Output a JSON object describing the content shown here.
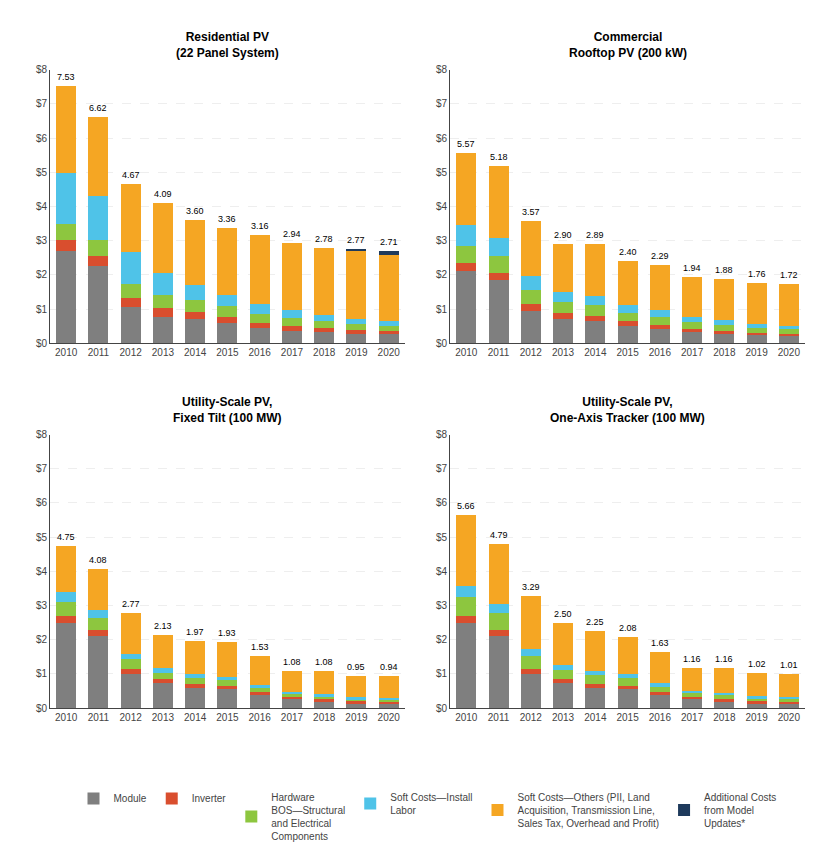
{
  "chart_data": [
    {
      "type": "bar",
      "stacked": true,
      "grid": true,
      "title": "Residential PV\n(22 Panel System)",
      "categories": [
        "2010",
        "2011",
        "2012",
        "2013",
        "2014",
        "2015",
        "2016",
        "2017",
        "2018",
        "2019",
        "2020"
      ],
      "series": [
        {
          "name": "Module",
          "color": "#7F7F7F",
          "values": [
            2.7,
            2.26,
            1.05,
            0.78,
            0.72,
            0.6,
            0.44,
            0.37,
            0.32,
            0.28,
            0.26
          ]
        },
        {
          "name": "Inverter",
          "color": "#D94E2E",
          "values": [
            0.32,
            0.3,
            0.27,
            0.24,
            0.2,
            0.18,
            0.16,
            0.14,
            0.12,
            0.11,
            0.1
          ]
        },
        {
          "name": "Hardware\nBOS—Structural\nand Electrical\nComponents",
          "color": "#8DC63F",
          "values": [
            0.48,
            0.46,
            0.42,
            0.38,
            0.35,
            0.3,
            0.26,
            0.23,
            0.2,
            0.17,
            0.16
          ]
        },
        {
          "name": "Soft Costs—Install\nLabor",
          "color": "#4FC3E8",
          "values": [
            1.48,
            1.3,
            0.93,
            0.67,
            0.43,
            0.33,
            0.28,
            0.22,
            0.18,
            0.15,
            0.13
          ]
        },
        {
          "name": "Soft Costs—Others (PII, Land\nAcquisition, Transmission Line,\nSales Tax, Overhead and Profit)",
          "color": "#F5A623",
          "values": [
            2.55,
            2.3,
            2.0,
            2.02,
            1.9,
            1.95,
            2.02,
            1.98,
            1.96,
            1.99,
            1.93
          ]
        },
        {
          "name": "Additional Costs\nfrom Model\nUpdates*",
          "color": "#1E3A5C",
          "values": [
            0.0,
            0.0,
            0.0,
            0.0,
            0.0,
            0.0,
            0.0,
            0.0,
            0.0,
            0.07,
            0.13
          ]
        }
      ],
      "totals": [
        7.53,
        6.62,
        4.67,
        4.09,
        3.6,
        3.36,
        3.16,
        2.94,
        2.78,
        2.77,
        2.71
      ],
      "total_labels": [
        "7.53",
        "6.62",
        "4.67",
        "4.09",
        "3.60",
        "3.36",
        "3.16",
        "2.94",
        "2.78",
        "2.77",
        "2.71"
      ],
      "ylim": [
        0,
        8
      ],
      "yticks": [
        {
          "value": 0,
          "label": "$0"
        },
        {
          "value": 1,
          "label": "$1"
        },
        {
          "value": 2,
          "label": "$2"
        },
        {
          "value": 3,
          "label": "$3"
        },
        {
          "value": 4,
          "label": "$4"
        },
        {
          "value": 5,
          "label": "$5"
        },
        {
          "value": 6,
          "label": "$6"
        },
        {
          "value": 7,
          "label": "$7"
        },
        {
          "value": 8,
          "label": "$8"
        }
      ]
    },
    {
      "type": "bar",
      "stacked": true,
      "grid": true,
      "title": "Commercial\nRooftop PV (200 kW)",
      "categories": [
        "2010",
        "2011",
        "2012",
        "2013",
        "2014",
        "2015",
        "2016",
        "2017",
        "2018",
        "2019",
        "2020"
      ],
      "series": [
        {
          "name": "Module",
          "color": "#7F7F7F",
          "values": [
            2.1,
            1.85,
            0.95,
            0.72,
            0.65,
            0.52,
            0.42,
            0.33,
            0.28,
            0.23,
            0.21
          ]
        },
        {
          "name": "Inverter",
          "color": "#D94E2E",
          "values": [
            0.25,
            0.22,
            0.2,
            0.16,
            0.16,
            0.13,
            0.12,
            0.1,
            0.09,
            0.08,
            0.07
          ]
        },
        {
          "name": "Hardware\nBOS—Structural\nand Electrical\nComponents",
          "color": "#8DC63F",
          "values": [
            0.5,
            0.47,
            0.4,
            0.32,
            0.3,
            0.25,
            0.22,
            0.18,
            0.16,
            0.14,
            0.13
          ]
        },
        {
          "name": "Soft Costs—Install\nLabor",
          "color": "#4FC3E8",
          "values": [
            0.62,
            0.54,
            0.42,
            0.3,
            0.28,
            0.22,
            0.2,
            0.16,
            0.14,
            0.12,
            0.11
          ]
        },
        {
          "name": "Soft Costs—Others (PII, Land\nAcquisition, Transmission Line,\nSales Tax, Overhead and Profit)",
          "color": "#F5A623",
          "values": [
            2.1,
            2.1,
            1.6,
            1.4,
            1.5,
            1.28,
            1.33,
            1.17,
            1.21,
            1.19,
            1.2
          ]
        },
        {
          "name": "Additional Costs\nfrom Model\nUpdates*",
          "color": "#1E3A5C",
          "values": [
            0.0,
            0.0,
            0.0,
            0.0,
            0.0,
            0.0,
            0.0,
            0.0,
            0.0,
            0.0,
            0.0
          ]
        }
      ],
      "totals": [
        5.57,
        5.18,
        3.57,
        2.9,
        2.89,
        2.4,
        2.29,
        1.94,
        1.88,
        1.76,
        1.72
      ],
      "total_labels": [
        "5.57",
        "5.18",
        "3.57",
        "2.90",
        "2.89",
        "2.40",
        "2.29",
        "1.94",
        "1.88",
        "1.76",
        "1.72"
      ],
      "ylim": [
        0,
        8
      ],
      "yticks": [
        {
          "value": 0,
          "label": "$0"
        },
        {
          "value": 1,
          "label": "$1"
        },
        {
          "value": 2,
          "label": "$2"
        },
        {
          "value": 3,
          "label": "$3"
        },
        {
          "value": 4,
          "label": "$4"
        },
        {
          "value": 5,
          "label": "$5"
        },
        {
          "value": 6,
          "label": "$6"
        },
        {
          "value": 7,
          "label": "$7"
        },
        {
          "value": 8,
          "label": "$8"
        }
      ]
    },
    {
      "type": "bar",
      "stacked": true,
      "grid": true,
      "title": "Utility-Scale PV,\nFixed Tilt (100 MW)",
      "categories": [
        "2010",
        "2011",
        "2012",
        "2013",
        "2014",
        "2015",
        "2016",
        "2017",
        "2018",
        "2019",
        "2020"
      ],
      "series": [
        {
          "name": "Module",
          "color": "#7F7F7F",
          "values": [
            2.5,
            2.1,
            1.0,
            0.72,
            0.6,
            0.55,
            0.38,
            0.26,
            0.22,
            0.16,
            0.15
          ]
        },
        {
          "name": "Inverter",
          "color": "#D94E2E",
          "values": [
            0.2,
            0.18,
            0.15,
            0.12,
            0.11,
            0.1,
            0.08,
            0.06,
            0.05,
            0.04,
            0.04
          ]
        },
        {
          "name": "Hardware\nBOS—Structural\nand Electrical\nComponents",
          "color": "#8DC63F",
          "values": [
            0.4,
            0.36,
            0.28,
            0.2,
            0.18,
            0.17,
            0.13,
            0.09,
            0.08,
            0.07,
            0.07
          ]
        },
        {
          "name": "Soft Costs—Install\nLabor",
          "color": "#4FC3E8",
          "values": [
            0.28,
            0.22,
            0.16,
            0.12,
            0.1,
            0.1,
            0.08,
            0.06,
            0.05,
            0.05,
            0.04
          ]
        },
        {
          "name": "Soft Costs—Others (PII, Land\nAcquisition, Transmission Line,\nSales Tax, Overhead and Profit)",
          "color": "#F5A623",
          "values": [
            1.37,
            1.22,
            1.18,
            0.97,
            0.98,
            1.01,
            0.86,
            0.61,
            0.68,
            0.63,
            0.64
          ]
        },
        {
          "name": "Additional Costs\nfrom Model\nUpdates*",
          "color": "#1E3A5C",
          "values": [
            0.0,
            0.0,
            0.0,
            0.0,
            0.0,
            0.0,
            0.0,
            0.0,
            0.0,
            0.0,
            0.0
          ]
        }
      ],
      "totals": [
        4.75,
        4.08,
        2.77,
        2.13,
        1.97,
        1.93,
        1.53,
        1.08,
        1.08,
        0.95,
        0.94
      ],
      "total_labels": [
        "4.75",
        "4.08",
        "2.77",
        "2.13",
        "1.97",
        "1.93",
        "1.53",
        "1.08",
        "1.08",
        "0.95",
        "0.94"
      ],
      "ylim": [
        0,
        8
      ],
      "yticks": [
        {
          "value": 0,
          "label": "$0"
        },
        {
          "value": 1,
          "label": "$1"
        },
        {
          "value": 2,
          "label": "$2"
        },
        {
          "value": 3,
          "label": "$3"
        },
        {
          "value": 4,
          "label": "$4"
        },
        {
          "value": 5,
          "label": "$5"
        },
        {
          "value": 6,
          "label": "$6"
        },
        {
          "value": 7,
          "label": "$7"
        },
        {
          "value": 8,
          "label": "$8"
        }
      ]
    },
    {
      "type": "bar",
      "stacked": true,
      "grid": true,
      "title": "Utility-Scale PV,\nOne-Axis Tracker (100 MW)",
      "categories": [
        "2010",
        "2011",
        "2012",
        "2013",
        "2014",
        "2015",
        "2016",
        "2017",
        "2018",
        "2019",
        "2020"
      ],
      "series": [
        {
          "name": "Module",
          "color": "#7F7F7F",
          "values": [
            2.5,
            2.1,
            1.0,
            0.72,
            0.6,
            0.55,
            0.38,
            0.26,
            0.22,
            0.16,
            0.15
          ]
        },
        {
          "name": "Inverter",
          "color": "#D94E2E",
          "values": [
            0.2,
            0.18,
            0.15,
            0.12,
            0.11,
            0.1,
            0.08,
            0.06,
            0.05,
            0.04,
            0.04
          ]
        },
        {
          "name": "Hardware\nBOS—Structural\nand Electrical\nComponents",
          "color": "#8DC63F",
          "values": [
            0.55,
            0.5,
            0.38,
            0.28,
            0.25,
            0.22,
            0.17,
            0.12,
            0.11,
            0.09,
            0.09
          ]
        },
        {
          "name": "Soft Costs—Install\nLabor",
          "color": "#4FC3E8",
          "values": [
            0.33,
            0.27,
            0.19,
            0.14,
            0.13,
            0.12,
            0.09,
            0.07,
            0.06,
            0.05,
            0.05
          ]
        },
        {
          "name": "Soft Costs—Others (PII, Land\nAcquisition, Transmission Line,\nSales Tax, Overhead and Profit)",
          "color": "#F5A623",
          "values": [
            2.08,
            1.74,
            1.57,
            1.24,
            1.16,
            1.09,
            0.91,
            0.65,
            0.72,
            0.68,
            0.68
          ]
        },
        {
          "name": "Additional Costs\nfrom Model\nUpdates*",
          "color": "#1E3A5C",
          "values": [
            0.0,
            0.0,
            0.0,
            0.0,
            0.0,
            0.0,
            0.0,
            0.0,
            0.0,
            0.0,
            0.0
          ]
        }
      ],
      "totals": [
        5.66,
        4.79,
        3.29,
        2.5,
        2.25,
        2.08,
        1.63,
        1.16,
        1.16,
        1.02,
        1.01
      ],
      "total_labels": [
        "5.66",
        "4.79",
        "3.29",
        "2.50",
        "2.25",
        "2.08",
        "1.63",
        "1.16",
        "1.16",
        "1.02",
        "1.01"
      ],
      "ylim": [
        0,
        8
      ],
      "yticks": [
        {
          "value": 0,
          "label": "$0"
        },
        {
          "value": 1,
          "label": "$1"
        },
        {
          "value": 2,
          "label": "$2"
        },
        {
          "value": 3,
          "label": "$3"
        },
        {
          "value": 4,
          "label": "$4"
        },
        {
          "value": 5,
          "label": "$5"
        },
        {
          "value": 6,
          "label": "$6"
        },
        {
          "value": 7,
          "label": "$7"
        },
        {
          "value": 8,
          "label": "$8"
        }
      ]
    }
  ]
}
